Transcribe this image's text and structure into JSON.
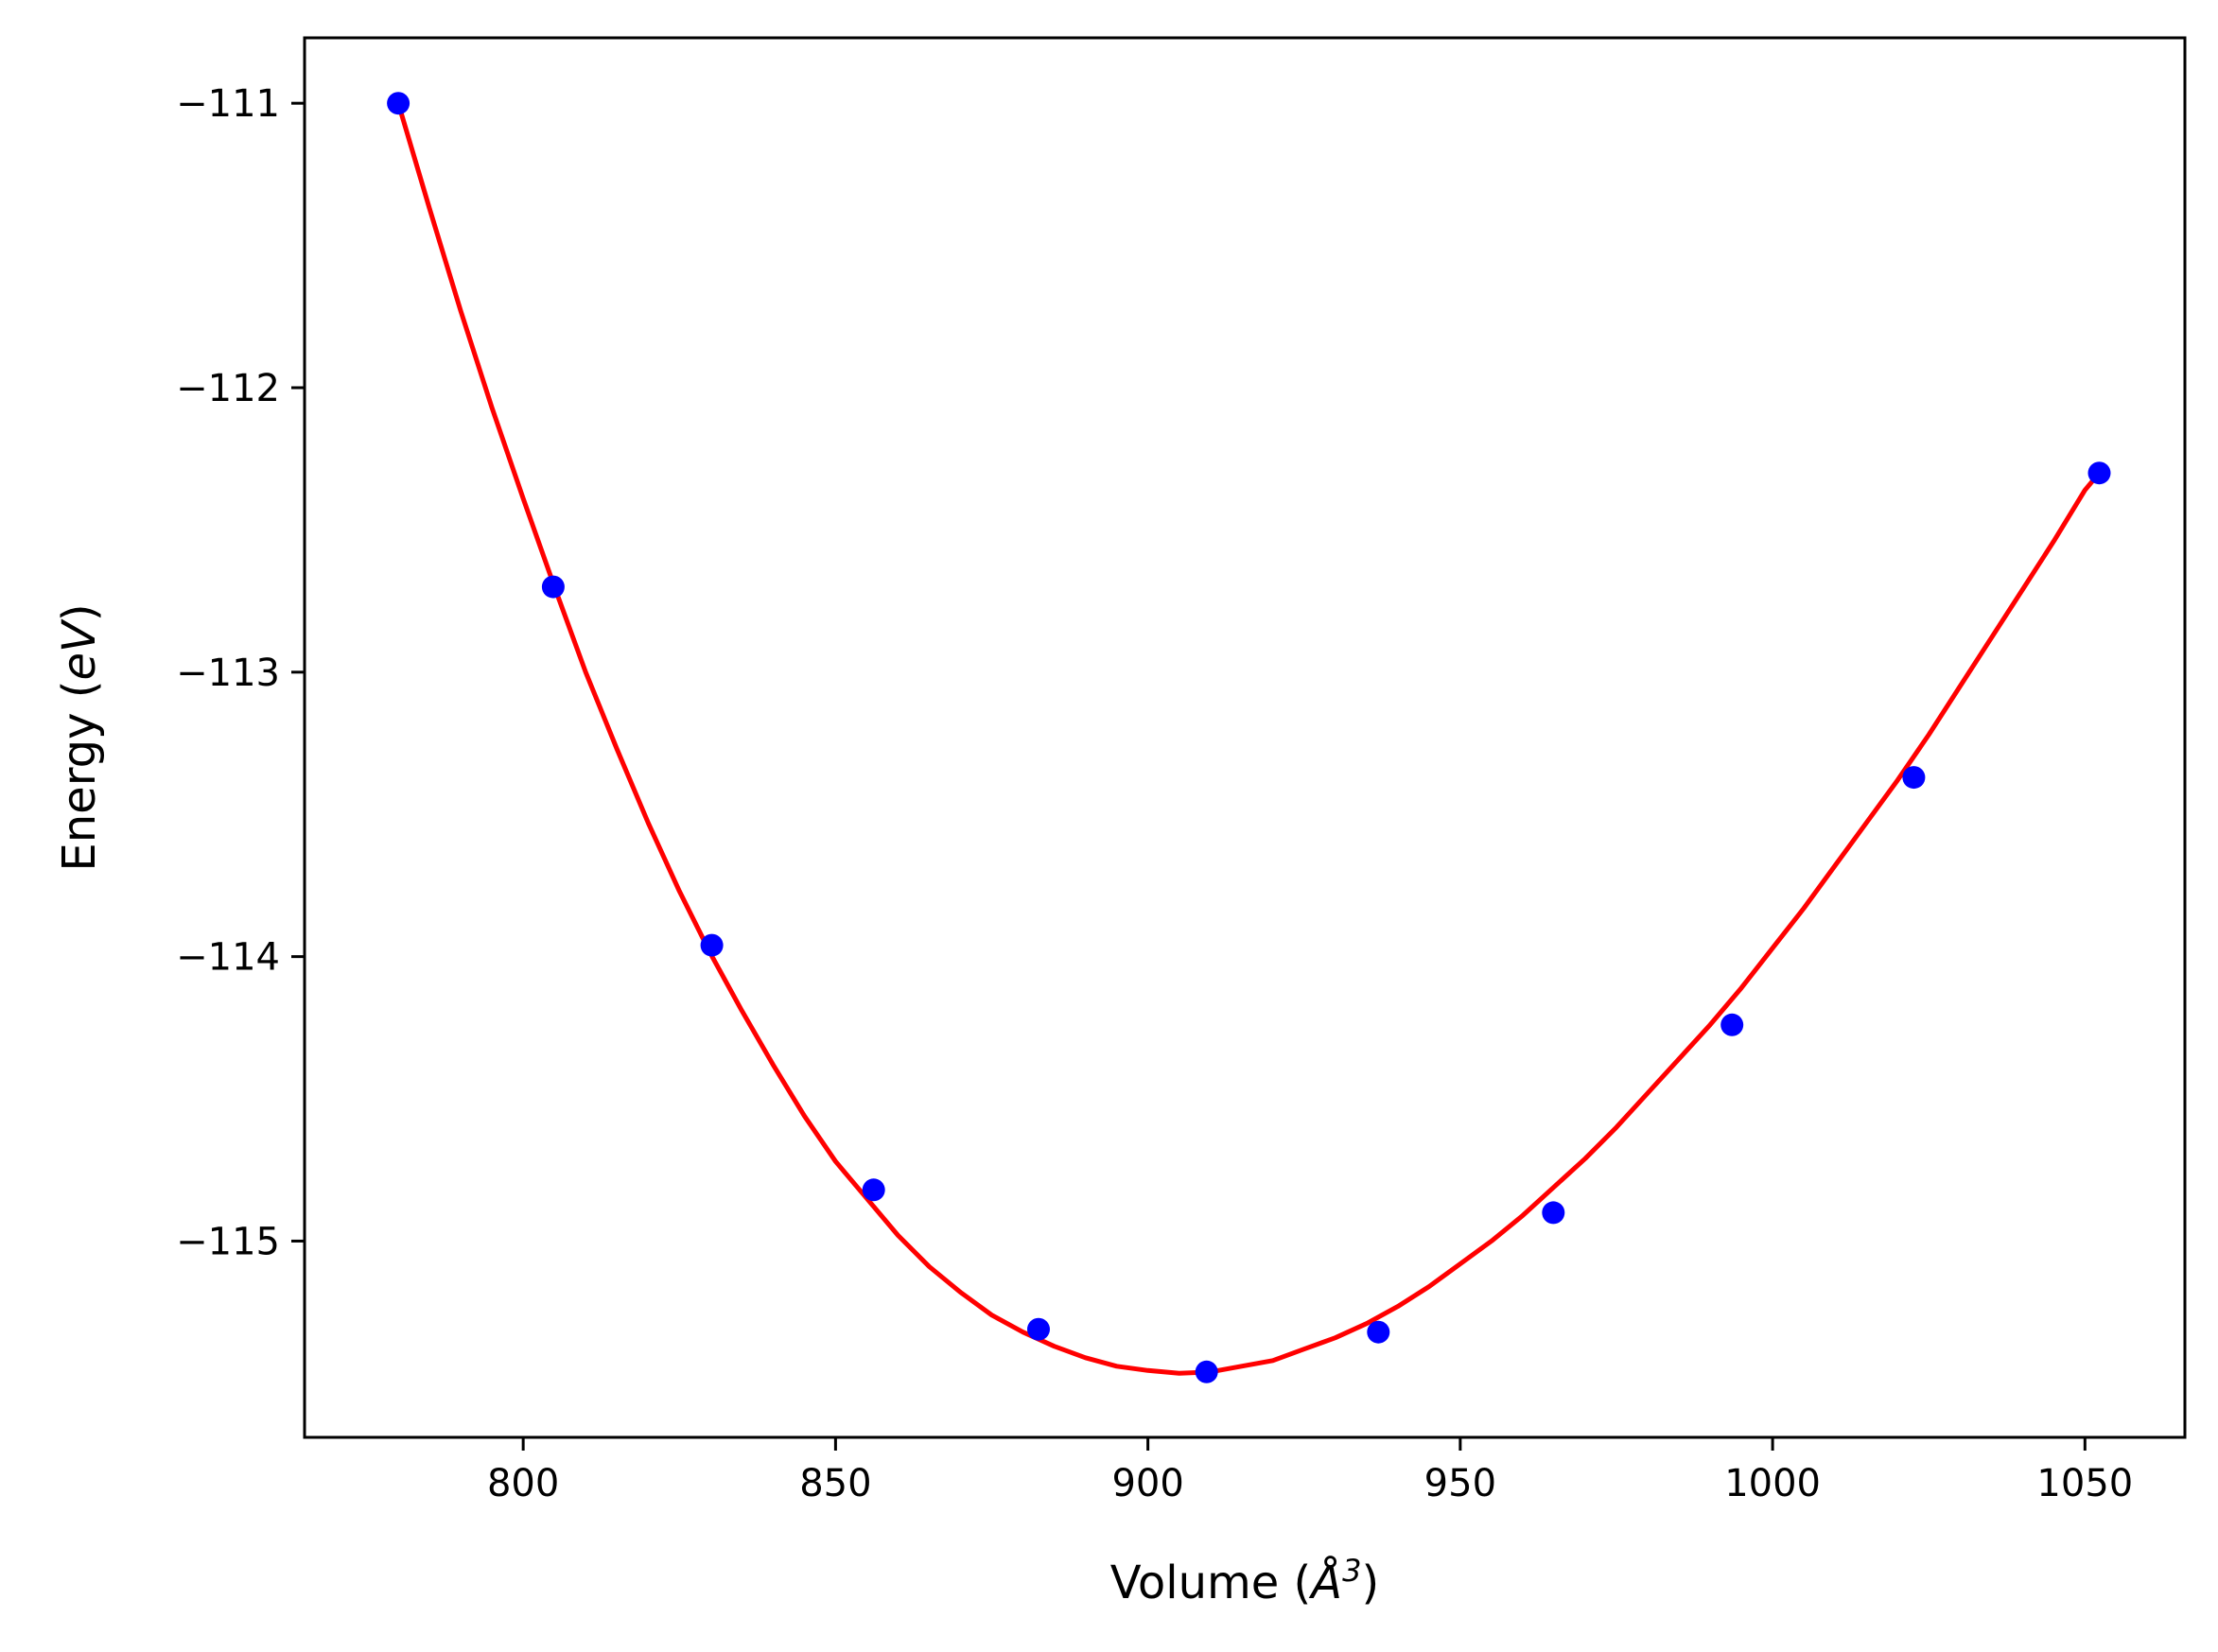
{
  "chart_data": {
    "type": "scatter",
    "title": "",
    "xlabel": {
      "prefix": "Volume (",
      "symbol": "Å",
      "superscript": "3",
      "suffix": ")"
    },
    "ylabel": {
      "prefix": "Energy (",
      "unit": "eV",
      "suffix": ")"
    },
    "xlim": [
      765,
      1066
    ],
    "ylim": [
      -115.69,
      -110.77
    ],
    "x_ticks": [
      800,
      850,
      900,
      950,
      1000,
      1050
    ],
    "x_tick_labels": [
      "800",
      "850",
      "900",
      "950",
      "1000",
      "1050"
    ],
    "y_ticks": [
      -111,
      -112,
      -113,
      -114,
      -115
    ],
    "y_tick_labels": [
      "−111",
      "−112",
      "−113",
      "−114",
      "−115"
    ],
    "grid": false,
    "legend": "none",
    "series": [
      {
        "kind": "points",
        "color": "#0000ff",
        "x": [
          780.0,
          804.8,
          830.2,
          856.1,
          882.5,
          909.4,
          936.9,
          964.9,
          993.5,
          1022.6,
          1052.3
        ],
        "y": [
          -111.0,
          -112.7,
          -113.96,
          -114.82,
          -115.31,
          -115.46,
          -115.32,
          -114.9,
          -114.24,
          -113.37,
          -112.3
        ]
      },
      {
        "kind": "fit-line",
        "color": "#ff0000",
        "x": [
          780,
          785,
          790,
          795,
          800,
          805,
          810,
          815,
          820,
          825,
          830,
          835,
          840,
          845,
          850,
          855,
          860,
          865,
          870,
          875,
          880,
          885,
          890,
          895,
          900,
          905,
          910,
          915,
          920,
          925,
          930,
          935,
          940,
          945,
          950,
          955,
          960,
          965,
          970,
          975,
          980,
          985,
          990,
          995,
          1000,
          1005,
          1010,
          1015,
          1020,
          1025,
          1030,
          1035,
          1040,
          1045,
          1050,
          1052.3
        ],
        "y": [
          -111.0,
          -111.37,
          -111.73,
          -112.07,
          -112.39,
          -112.7,
          -113.0,
          -113.27,
          -113.53,
          -113.77,
          -113.99,
          -114.19,
          -114.38,
          -114.56,
          -114.72,
          -114.85,
          -114.98,
          -115.09,
          -115.18,
          -115.26,
          -115.32,
          -115.37,
          -115.41,
          -115.44,
          -115.455,
          -115.465,
          -115.46,
          -115.44,
          -115.42,
          -115.38,
          -115.34,
          -115.29,
          -115.23,
          -115.16,
          -115.08,
          -115.0,
          -114.91,
          -114.81,
          -114.71,
          -114.6,
          -114.48,
          -114.36,
          -114.24,
          -114.11,
          -113.97,
          -113.83,
          -113.68,
          -113.53,
          -113.38,
          -113.22,
          -113.05,
          -112.88,
          -112.71,
          -112.54,
          -112.36,
          -112.3
        ]
      }
    ]
  }
}
